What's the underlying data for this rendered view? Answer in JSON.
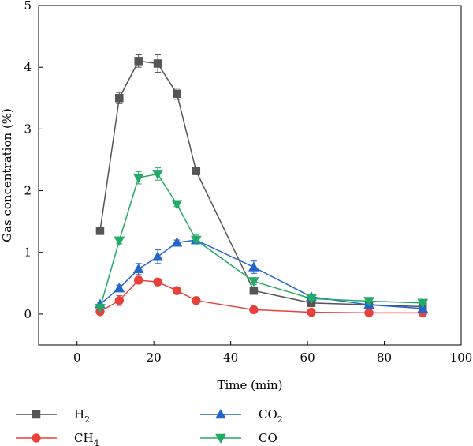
{
  "chart_data": {
    "type": "line",
    "xlabel": "Time (min)",
    "ylabel": "Gas concentration (%)",
    "xlim": [
      -10,
      100
    ],
    "ylim": [
      -0.5,
      5
    ],
    "x_ticks": [
      0,
      20,
      40,
      60,
      80,
      100
    ],
    "y_ticks": [
      0,
      1,
      2,
      3,
      4,
      5
    ],
    "x_tick_labels": [
      "0",
      "20",
      "40",
      "60",
      "80",
      "100"
    ],
    "y_tick_labels": [
      "0",
      "1",
      "2",
      "3",
      "4",
      "5"
    ],
    "grid": false,
    "legend_position": "bottom",
    "x": [
      6,
      11,
      16,
      21,
      26,
      31,
      46,
      61,
      76,
      90
    ],
    "series": [
      {
        "name": "H2",
        "legend_base": "H",
        "legend_sub": "2",
        "color": "#555555",
        "marker": "square",
        "values": [
          1.35,
          3.5,
          4.1,
          4.06,
          3.57,
          2.32,
          0.38,
          0.18,
          0.15,
          0.12
        ],
        "errors": [
          0.06,
          0.09,
          0.1,
          0.14,
          0.09,
          0.06,
          0.04,
          0.02,
          0.02,
          0.02
        ]
      },
      {
        "name": "CH4",
        "legend_base": "CH",
        "legend_sub": "4",
        "color": "#e8413c",
        "marker": "circle",
        "values": [
          0.04,
          0.22,
          0.55,
          0.52,
          0.38,
          0.22,
          0.07,
          0.03,
          0.02,
          0.02
        ],
        "errors": [
          0.03,
          0.08,
          0.06,
          0.05,
          0.03,
          0.04,
          0.02,
          0.01,
          0.01,
          0.01
        ]
      },
      {
        "name": "CO2",
        "legend_base": "CO",
        "legend_sub": "2",
        "color": "#2266cc",
        "marker": "triangle-up",
        "values": [
          0.16,
          0.42,
          0.73,
          0.93,
          1.16,
          1.2,
          0.76,
          0.28,
          0.15,
          0.09
        ],
        "errors": [
          0.03,
          0.05,
          0.09,
          0.11,
          0.04,
          0.04,
          0.1,
          0.03,
          0.02,
          0.02
        ]
      },
      {
        "name": "CO",
        "legend_base": "CO",
        "legend_sub": "",
        "color": "#22aa66",
        "marker": "triangle-down",
        "values": [
          0.1,
          1.19,
          2.21,
          2.27,
          1.78,
          1.2,
          0.53,
          0.25,
          0.21,
          0.18
        ],
        "errors": [
          0.02,
          0.05,
          0.1,
          0.1,
          0.04,
          0.08,
          0.05,
          0.02,
          0.02,
          0.02
        ]
      }
    ]
  }
}
